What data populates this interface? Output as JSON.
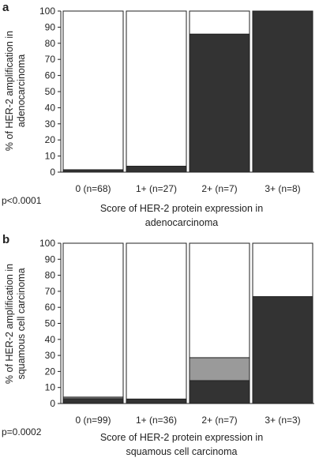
{
  "chart_data": [
    {
      "panel_label": "a",
      "type": "bar",
      "stacked": true,
      "ylabel_lines": [
        "% of HER-2 amplification in",
        "adenocarcinoma"
      ],
      "xlabel_lines": [
        "Score of HER-2 protein expression in",
        "adenocarcinoma"
      ],
      "p_value": "p<0.0001",
      "ylim": [
        0,
        100
      ],
      "yticks": [
        0,
        10,
        20,
        30,
        40,
        50,
        60,
        70,
        80,
        90,
        100
      ],
      "categories": [
        "0 (n=68)",
        "1+ (n=27)",
        "2+ (n=7)",
        "3+ (n=8)"
      ],
      "series": [
        {
          "color": "#333333",
          "values": [
            1.5,
            3.7,
            85.7,
            100
          ]
        },
        {
          "color": "#ffffff",
          "values": [
            98.5,
            96.3,
            14.3,
            0
          ]
        }
      ]
    },
    {
      "panel_label": "b",
      "type": "bar",
      "stacked": true,
      "ylabel_lines": [
        "% of HER-2 amplification in",
        "squamous cell carcinoma"
      ],
      "xlabel_lines": [
        "Score of HER-2 protein expression in",
        "squamous cell carcinoma"
      ],
      "p_value": "p=0.0002",
      "ylim": [
        0,
        100
      ],
      "yticks": [
        0,
        10,
        20,
        30,
        40,
        50,
        60,
        70,
        80,
        90,
        100
      ],
      "categories": [
        "0 (n=99)",
        "1+ (n=36)",
        "2+ (n=7)",
        "3+ (n=3)"
      ],
      "series": [
        {
          "color": "#333333",
          "values": [
            3.0,
            2.8,
            14.3,
            66.7
          ]
        },
        {
          "color": "#9a9a9a",
          "values": [
            1.0,
            0,
            14.3,
            0
          ]
        },
        {
          "color": "#ffffff",
          "values": [
            96.0,
            97.2,
            71.4,
            33.3
          ]
        }
      ]
    }
  ]
}
